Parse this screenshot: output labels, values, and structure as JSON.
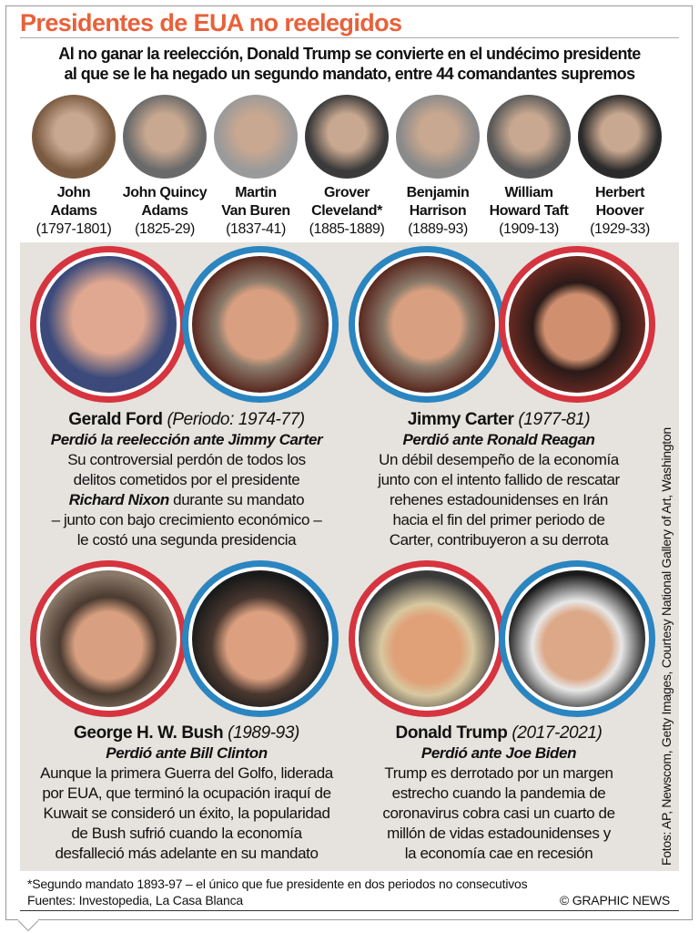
{
  "title": "Presidentes de EUA no reelegidos",
  "subtitle": [
    "Al no ganar la reelección, Donald Trump se convierte en el undécimo presidente",
    "al que se le ha negado un segundo mandato, entre 44 comandantes supremos"
  ],
  "early": [
    {
      "name1": "John",
      "name2": "Adams",
      "years": "(1797-1801)"
    },
    {
      "name1": "John Quincy",
      "name2": "Adams",
      "years": "(1825-29)"
    },
    {
      "name1": "Martin",
      "name2": "Van Buren",
      "years": "(1837-41)"
    },
    {
      "name1": "Grover",
      "name2": "Cleveland*",
      "years": "(1885-1889)"
    },
    {
      "name1": "Benjamin",
      "name2": "Harrison",
      "years": "(1889-93)"
    },
    {
      "name1": "William",
      "name2": "Howard Taft",
      "years": "(1909-13)"
    },
    {
      "name1": "Herbert",
      "name2": "Hoover",
      "years": "(1929-33)"
    }
  ],
  "colors": {
    "title": "#e8613a",
    "loser_ring": "#d6343f",
    "winner_ring": "#2a85c0",
    "panel": "#e6e2dd"
  },
  "cases": [
    {
      "name": "Gerald Ford",
      "period": "(Periodo: 1974-77)",
      "lost": "Perdió la reelección ante Jimmy Carter",
      "body": [
        "Su controversial perdón de todos los",
        "delitos cometidos por el presidente",
        "Richard Nixon durante su mandato",
        "– junto con bajo crecimiento económico –",
        "le costó una segunda presidencia"
      ]
    },
    {
      "name": "Jimmy Carter",
      "period": "(1977-81)",
      "lost": "Perdió ante Ronald Reagan",
      "body": [
        "Un débil desempeño de la economía",
        "junto con el intento fallido de rescatar",
        "rehenes estadounidenses en Irán",
        "hacia el fin del primer periodo de",
        "Carter, contribuyeron a su derrota"
      ]
    },
    {
      "name": "George H. W. Bush",
      "period": "(1989-93)",
      "lost": "Perdió ante Bill Clinton",
      "body": [
        "Aunque la primera Guerra del Golfo, liderada",
        "por EUA, que terminó la ocupación iraquí de",
        "Kuwait se consideró un éxito, la popularidad",
        "de Bush sufrió cuando la economía",
        "desfalleció más adelante en su mandato"
      ]
    },
    {
      "name": "Donald Trump",
      "period": "(2017-2021)",
      "lost": "Perdió ante Joe Biden",
      "body": [
        "Trump es derrotado por un margen",
        "estrecho cuando la pandemia de",
        "coronavirus cobra casi un cuarto de",
        "millón de vidas estadounidenses y",
        "la economía cae en recesión"
      ]
    }
  ],
  "credit": "Fotos: AP, Newscom, Getty Images, Courtesy National Gallery of Art, Washington",
  "footnote": "*Segundo mandato 1893-97 – el único que fue presidente en dos periodos no consecutivos",
  "sources": "Fuentes: Investopedia, La Casa Blanca",
  "copyright": "© GRAPHIC NEWS"
}
